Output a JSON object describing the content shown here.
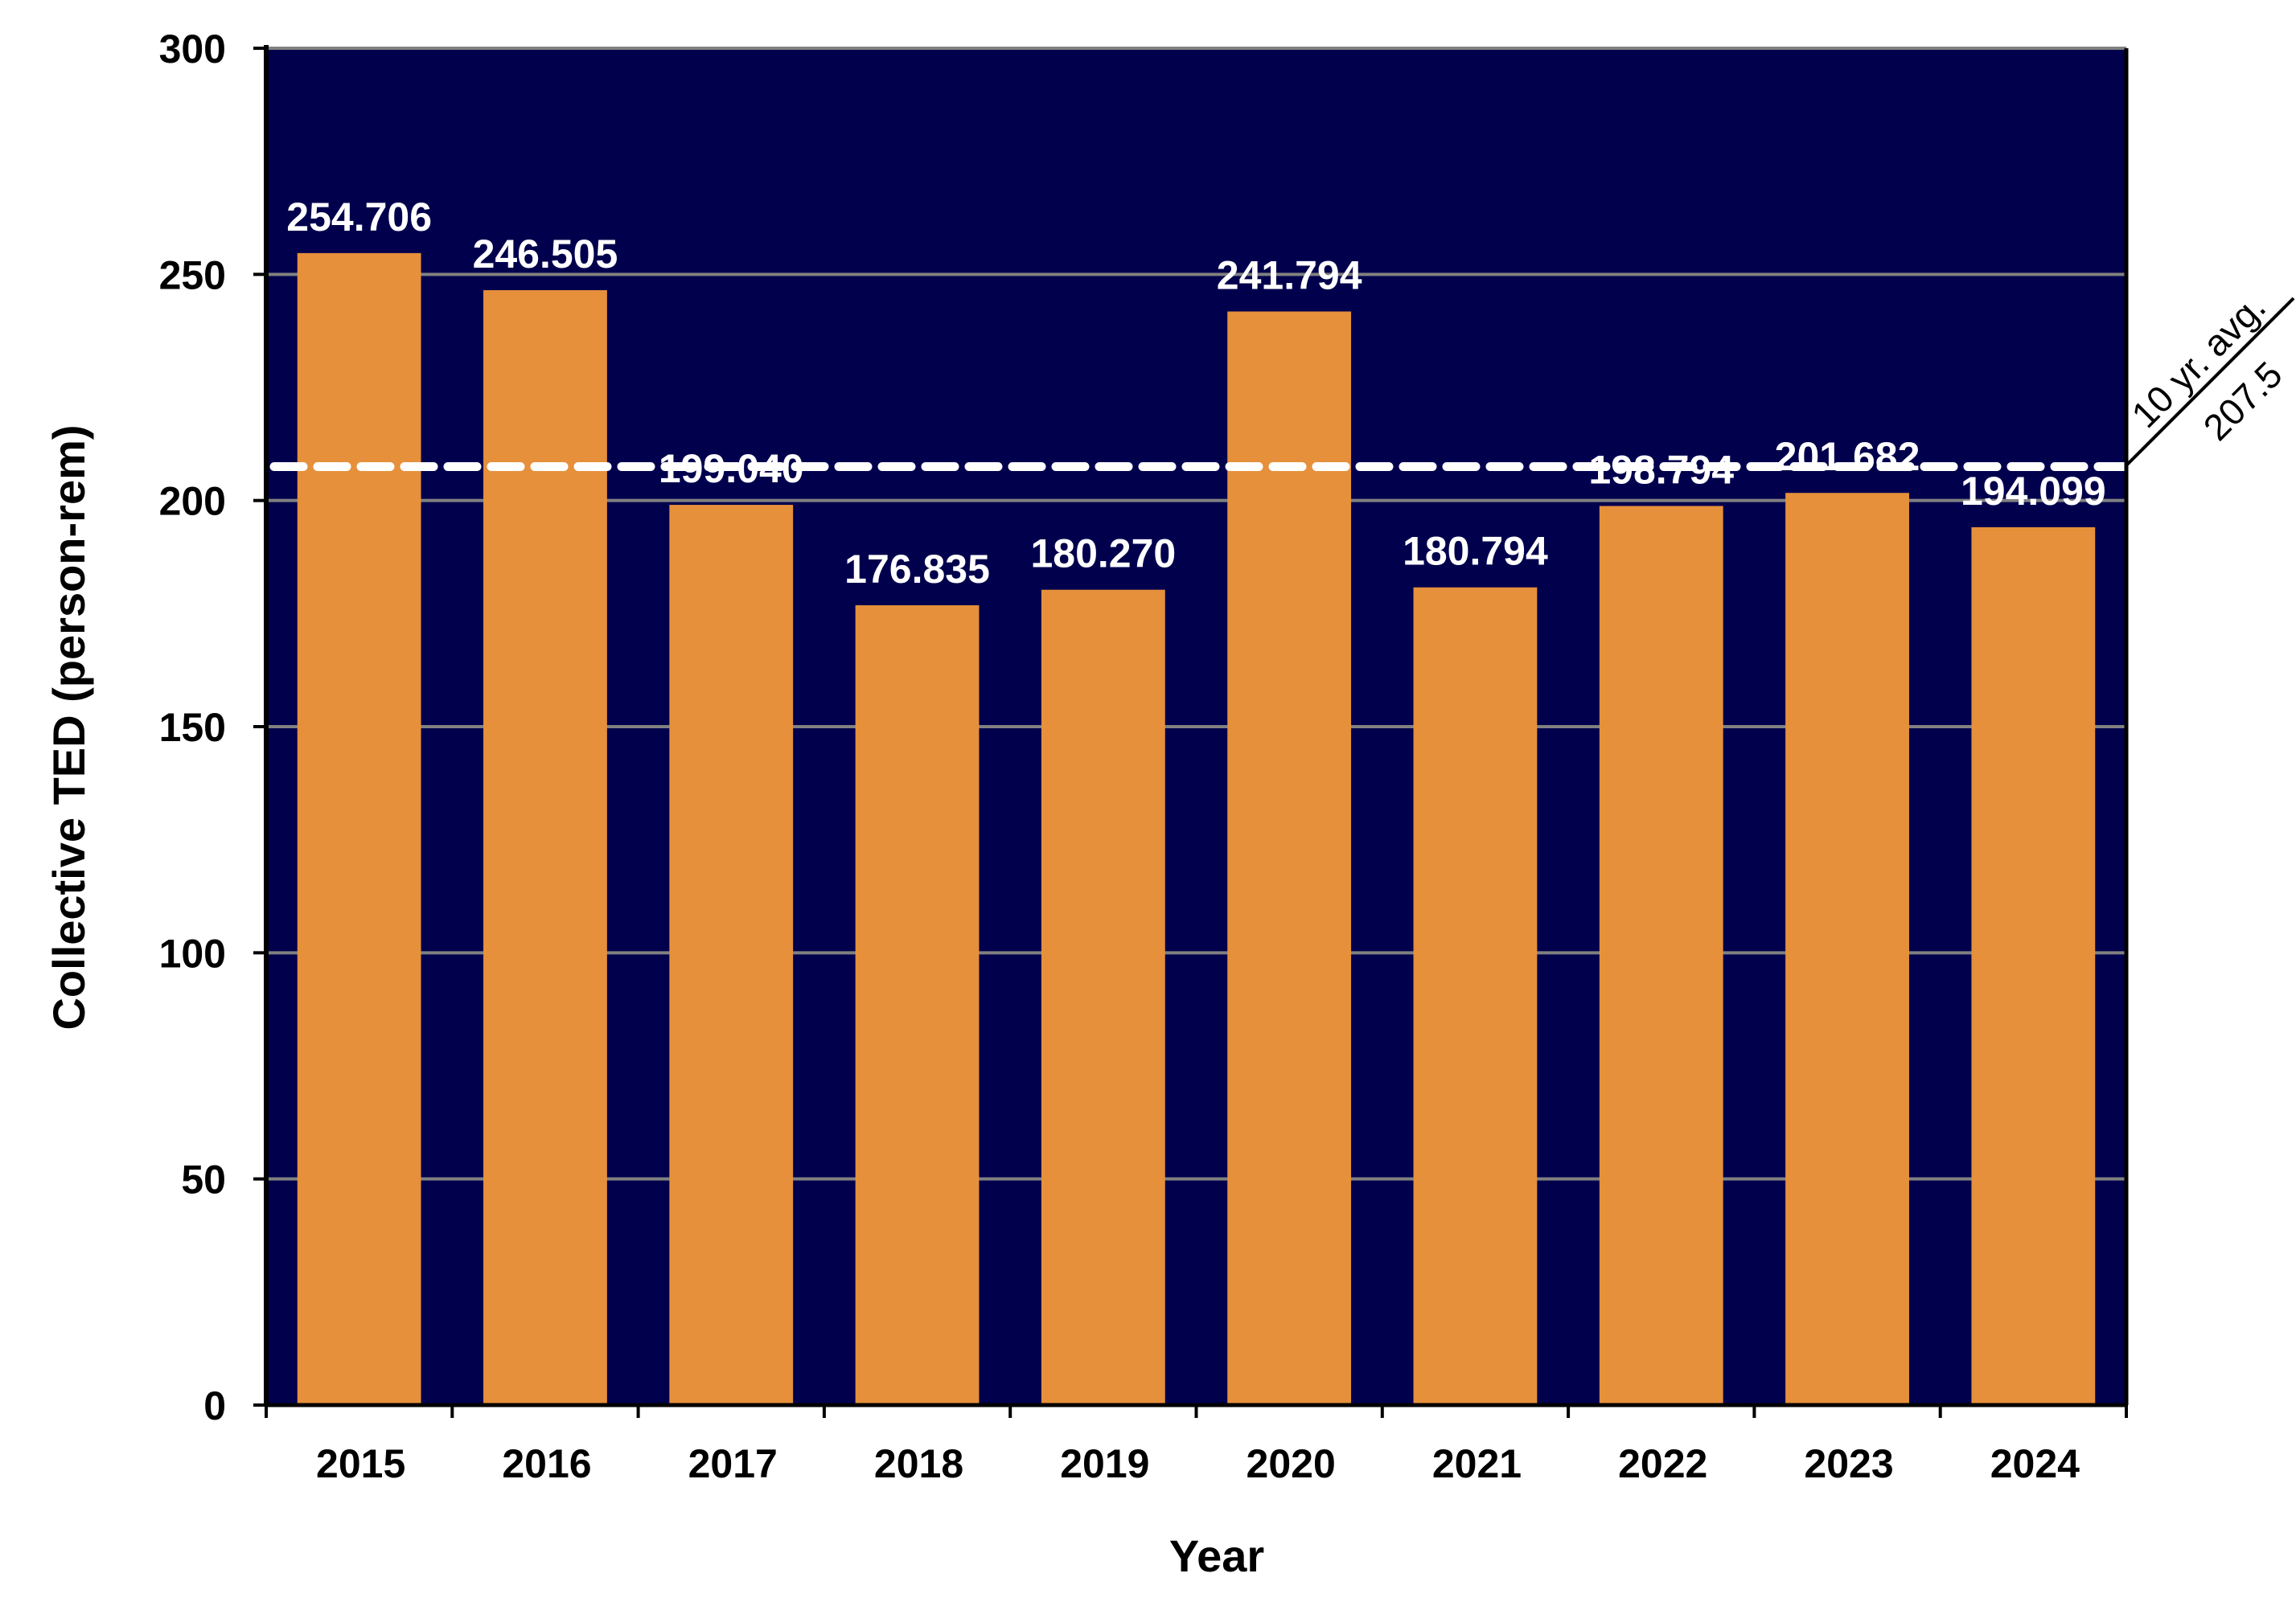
{
  "chart_data": {
    "type": "bar",
    "title": "",
    "xlabel": "Year",
    "ylabel": "Collective TED (person-rem)",
    "categories": [
      "2015",
      "2016",
      "2017",
      "2018",
      "2019",
      "2020",
      "2021",
      "2022",
      "2023",
      "2024"
    ],
    "values": [
      254.706,
      246.505,
      199.04,
      176.835,
      180.27,
      241.794,
      180.794,
      198.794,
      201.682,
      194.099
    ],
    "data_labels": [
      "254.706",
      "246.505",
      "199.040",
      "176.835",
      "180.270",
      "241.794",
      "180.794",
      "198.794",
      "201.682",
      "194.099"
    ],
    "ylim": [
      0,
      300
    ],
    "yticks": [
      0,
      50,
      100,
      150,
      200,
      250,
      300
    ],
    "grid": true,
    "legend": "none",
    "reference_line": {
      "value": 207.5,
      "style": "dashed",
      "label_top": "10 yr. avg.",
      "label_bottom": "207.5"
    },
    "colors": {
      "bar": "#E6903C",
      "plot_background": "#00004D",
      "gridline": "#808080",
      "reference_line": "#FFFFFF"
    }
  }
}
